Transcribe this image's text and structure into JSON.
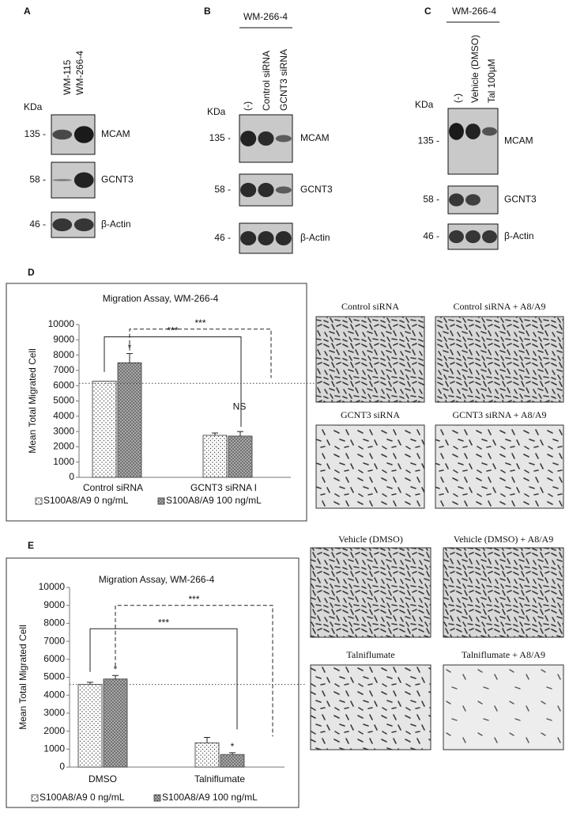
{
  "blots": [
    {
      "label": "A",
      "lanes": [
        "WM-115",
        "WM-266-4"
      ],
      "kda": "KDa",
      "markers": [
        "135 -",
        "58 -",
        "46 -"
      ],
      "proteins": [
        "MCAM",
        "GCNT3",
        "β-Actin"
      ]
    },
    {
      "label": "B",
      "cell_line": "WM-266-4",
      "lanes": [
        "(-)",
        "Control siRNA",
        "GCNT3 siRNA"
      ],
      "kda": "KDa",
      "markers": [
        "135 -",
        "58 -",
        "46 -"
      ],
      "proteins": [
        "MCAM",
        "GCNT3",
        "β-Actin"
      ]
    },
    {
      "label": "C",
      "cell_line": "WM-266-4",
      "lanes": [
        "(-)",
        "Vehicle (DMSO)",
        "Tal 100µM"
      ],
      "kda": "KDa",
      "markers": [
        "135 -",
        "58 -",
        "46 -"
      ],
      "proteins": [
        "MCAM",
        "GCNT3",
        "β-Actin"
      ]
    }
  ],
  "chart_data": [
    {
      "type": "bar",
      "label": "D",
      "title": "Migration Assay, WM-266-4",
      "y_label": "Mean Total Migrated Cell",
      "categories": [
        "Control siRNA",
        "GCNT3 siRNA I"
      ],
      "series": [
        {
          "name": "S100A8/A9 0 ng/mL",
          "pattern": "dots",
          "values": [
            6300,
            2750
          ],
          "errors": [
            0,
            150
          ]
        },
        {
          "name": "S100A8/A9 100 ng/mL",
          "pattern": "dark-dots",
          "values": [
            7500,
            2700
          ],
          "errors": [
            600,
            300
          ]
        }
      ],
      "ylim": [
        0,
        10000
      ],
      "yticks": [
        0,
        1000,
        2000,
        3000,
        4000,
        5000,
        6000,
        7000,
        8000,
        9000,
        10000
      ],
      "reference_line": 6150,
      "annotations": [
        "*",
        "***",
        "***",
        "NS"
      ]
    },
    {
      "type": "bar",
      "label": "E",
      "title": "Migration Assay, WM-266-4",
      "y_label": "Mean Total Migrated Cell",
      "categories": [
        "DMSO",
        "Talniflumate"
      ],
      "series": [
        {
          "name": "S100A8/A9 0 ng/mL",
          "pattern": "dots",
          "values": [
            4600,
            1350
          ],
          "errors": [
            120,
            300
          ]
        },
        {
          "name": "S100A8/A9 100 ng/mL",
          "pattern": "dark-dots",
          "values": [
            4900,
            700
          ],
          "errors": [
            200,
            100
          ]
        }
      ],
      "ylim": [
        0,
        10000
      ],
      "yticks": [
        0,
        1000,
        2000,
        3000,
        4000,
        5000,
        6000,
        7000,
        8000,
        9000,
        10000
      ],
      "reference_line": 4600,
      "annotations": [
        "*",
        "***",
        "***",
        "*"
      ]
    }
  ],
  "micrographs": [
    [
      "Control siRNA",
      "Control siRNA + A8/A9",
      "GCNT3 siRNA",
      "GCNT3 siRNA + A8/A9"
    ],
    [
      "Vehicle (DMSO)",
      "Vehicle (DMSO) + A8/A9",
      "Talniflumate",
      "Talniflumate + A8/A9"
    ]
  ]
}
